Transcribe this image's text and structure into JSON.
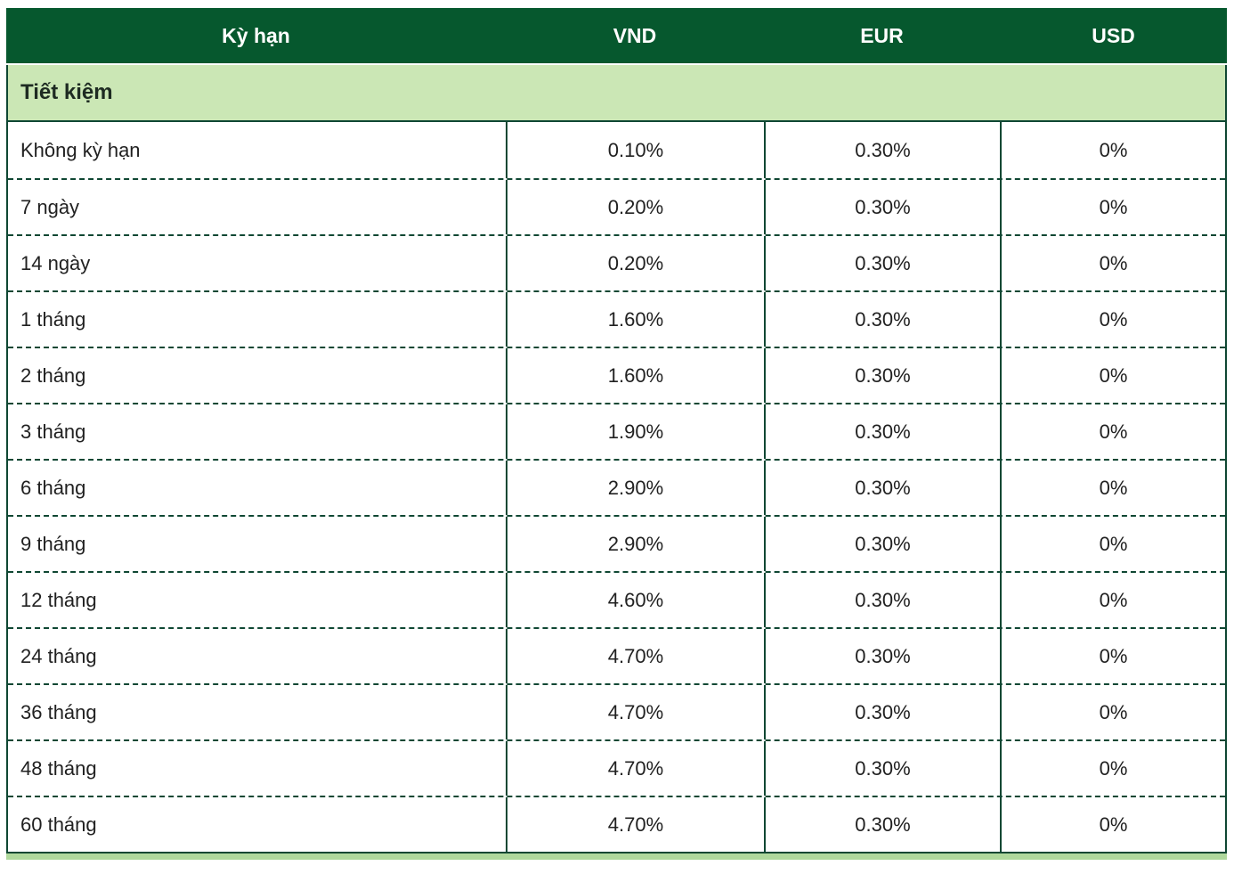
{
  "table": {
    "columns": [
      {
        "label": "Kỳ hạn"
      },
      {
        "label": "VND"
      },
      {
        "label": "EUR"
      },
      {
        "label": "USD"
      }
    ],
    "section": {
      "label": "Tiết kiệm"
    },
    "rows": [
      {
        "term": "Không kỳ hạn",
        "vnd": "0.10%",
        "eur": "0.30%",
        "usd": "0%"
      },
      {
        "term": "7 ngày",
        "vnd": "0.20%",
        "eur": "0.30%",
        "usd": "0%"
      },
      {
        "term": "14 ngày",
        "vnd": "0.20%",
        "eur": "0.30%",
        "usd": "0%"
      },
      {
        "term": "1 tháng",
        "vnd": "1.60%",
        "eur": "0.30%",
        "usd": "0%"
      },
      {
        "term": "2 tháng",
        "vnd": "1.60%",
        "eur": "0.30%",
        "usd": "0%"
      },
      {
        "term": "3 tháng",
        "vnd": "1.90%",
        "eur": "0.30%",
        "usd": "0%"
      },
      {
        "term": "6 tháng",
        "vnd": "2.90%",
        "eur": "0.30%",
        "usd": "0%"
      },
      {
        "term": "9 tháng",
        "vnd": "2.90%",
        "eur": "0.30%",
        "usd": "0%"
      },
      {
        "term": "12 tháng",
        "vnd": "4.60%",
        "eur": "0.30%",
        "usd": "0%"
      },
      {
        "term": "24 tháng",
        "vnd": "4.70%",
        "eur": "0.30%",
        "usd": "0%"
      },
      {
        "term": "36 tháng",
        "vnd": "4.70%",
        "eur": "0.30%",
        "usd": "0%"
      },
      {
        "term": "48 tháng",
        "vnd": "4.70%",
        "eur": "0.30%",
        "usd": "0%"
      },
      {
        "term": "60 tháng",
        "vnd": "4.70%",
        "eur": "0.30%",
        "usd": "0%"
      }
    ],
    "colors": {
      "header_bg": "#06582E",
      "section_bg": "#CBE7B5",
      "border": "#0F4733",
      "bottom_strip_bg": "#AFD89C",
      "header_text": "#FFFFFF",
      "cell_text": "#212121"
    }
  }
}
